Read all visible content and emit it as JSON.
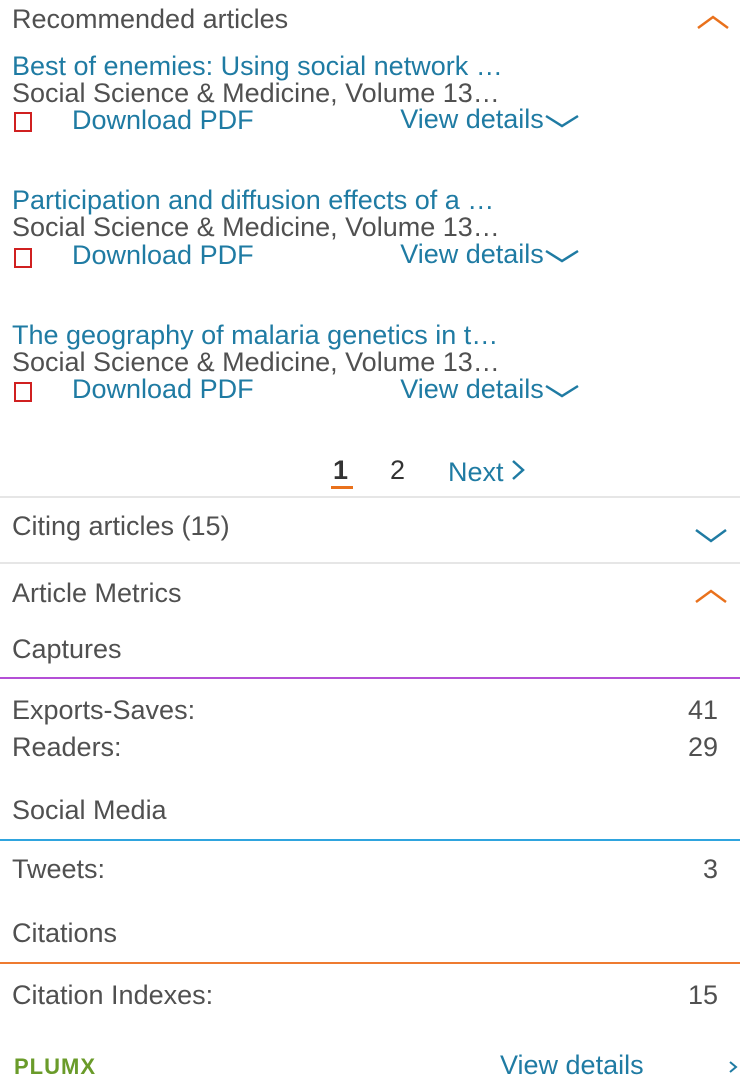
{
  "recommended": {
    "title": "Recommended articles",
    "articles": [
      {
        "title": "Best of enemies: Using social network …",
        "journal": "Social Science & Medicine, Volume 13…",
        "download": "Download PDF",
        "view": "View details"
      },
      {
        "title": "Participation and diffusion effects of a …",
        "journal": "Social Science & Medicine, Volume 13…",
        "download": "Download PDF",
        "view": "View details"
      },
      {
        "title": "The geography of malaria genetics in t…",
        "journal": "Social Science & Medicine, Volume 13…",
        "download": "Download PDF",
        "view": "View details"
      }
    ],
    "pagination": {
      "pages": [
        "1",
        "2"
      ],
      "next": "Next"
    }
  },
  "citing": {
    "title": "Citing articles (15)"
  },
  "metrics": {
    "title": "Article Metrics",
    "groups": [
      {
        "title": "Captures",
        "rows": [
          {
            "label": "Exports-Saves:",
            "value": 41
          },
          {
            "label": "Readers:",
            "value": 29
          }
        ]
      },
      {
        "title": "Social Media",
        "rows": [
          {
            "label": "Tweets:",
            "value": 3
          }
        ]
      },
      {
        "title": "Citations",
        "rows": [
          {
            "label": "Citation Indexes:",
            "value": 15
          }
        ]
      }
    ],
    "logo": "PLUMX",
    "view": "View details"
  }
}
